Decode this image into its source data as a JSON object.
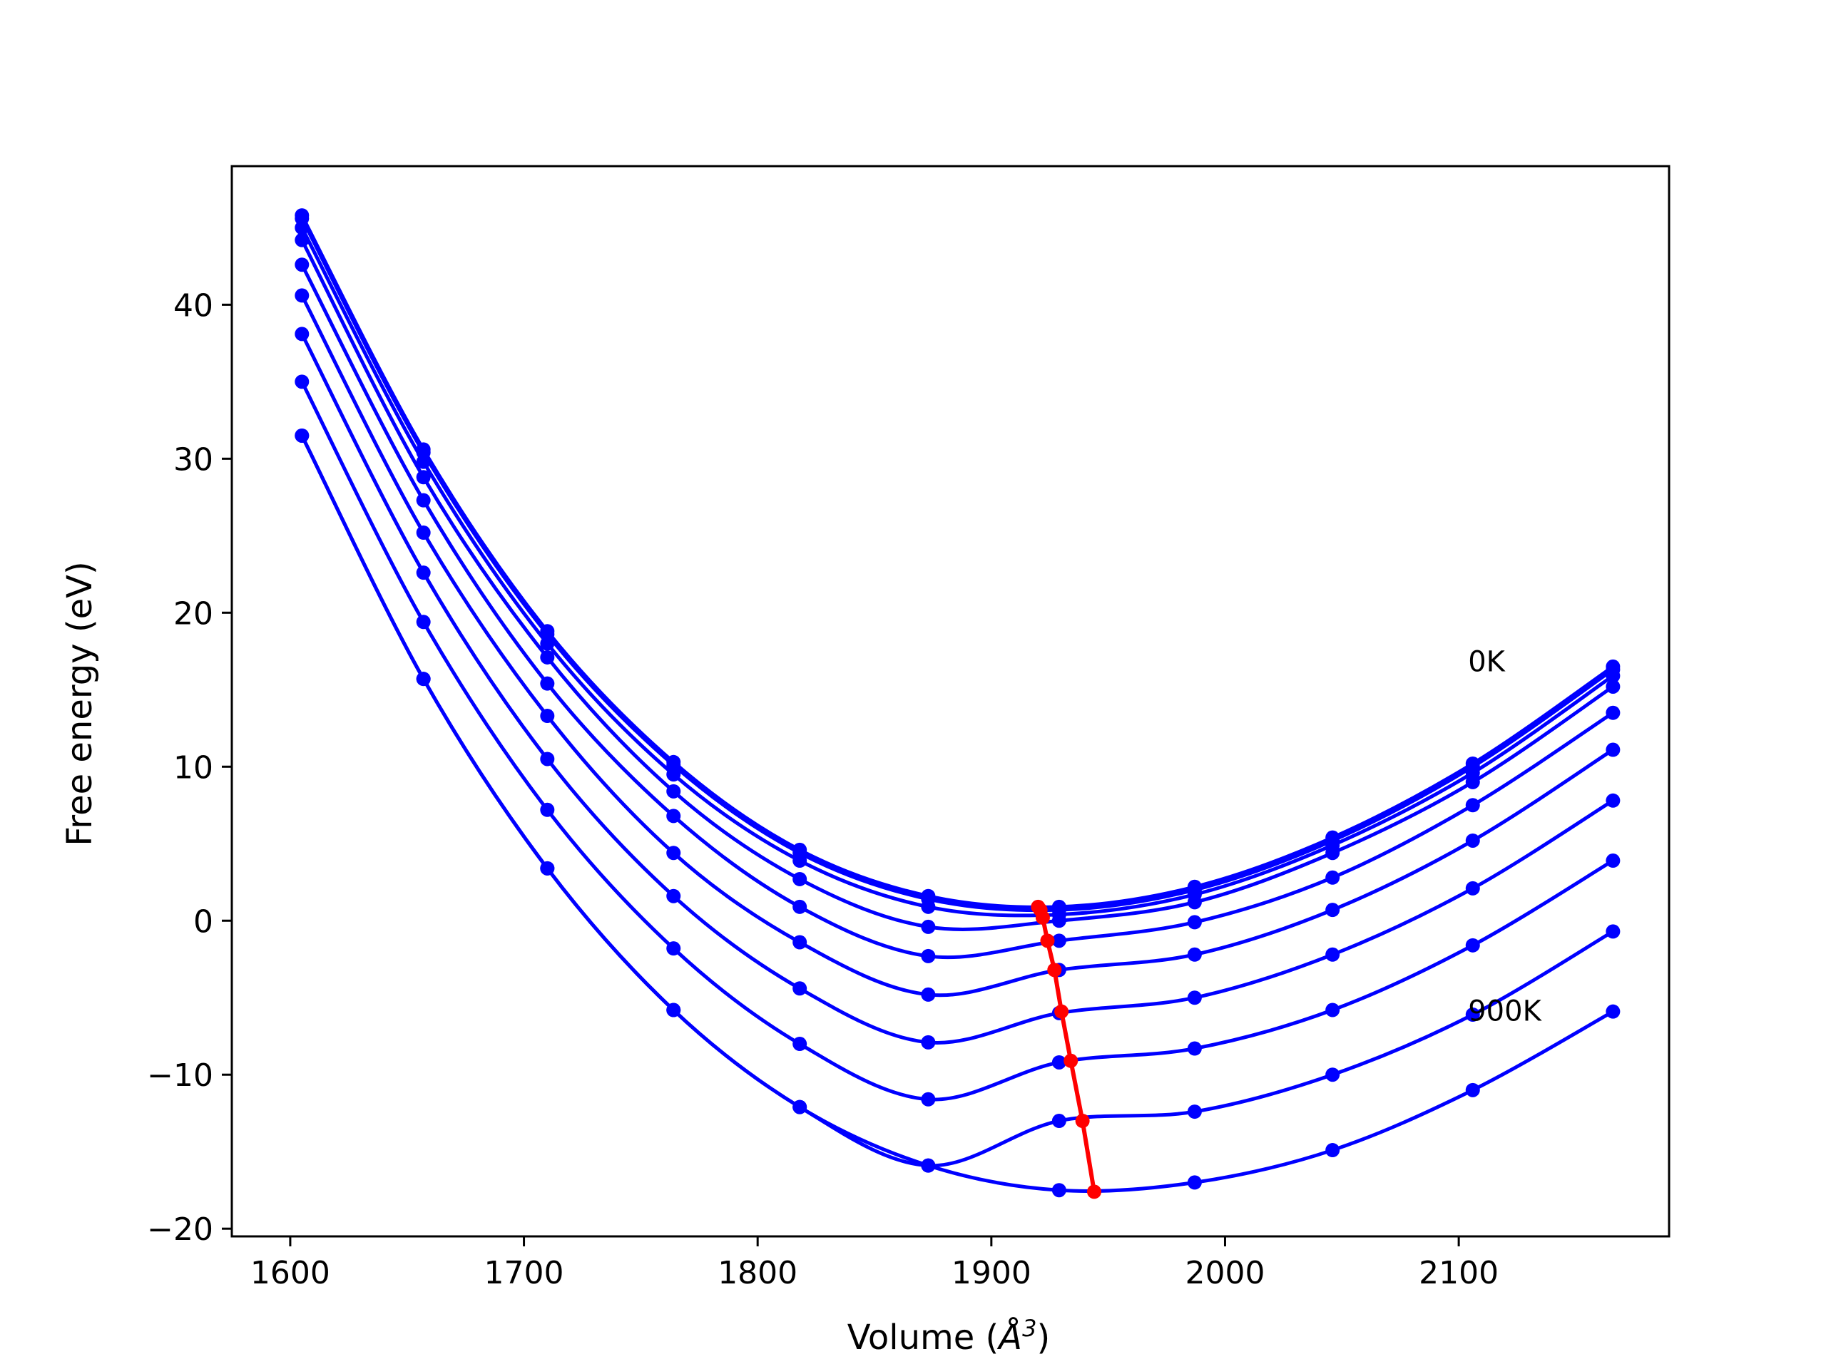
{
  "chart_data": {
    "type": "line",
    "xlabel": "Volume (",
    "xlabel_unit": "Å",
    "xlabel_exp": "3",
    "xlabel_close": ")",
    "ylabel": "Free energy (eV)",
    "xlim": [
      1575,
      2190
    ],
    "ylim": [
      -20.5,
      49
    ],
    "xticks": [
      1600,
      1700,
      1800,
      1900,
      2000,
      2100
    ],
    "yticks": [
      -20,
      -10,
      0,
      10,
      20,
      30,
      40
    ],
    "grid": false,
    "annotations": [
      {
        "text": "0K",
        "x": 2104,
        "y": 16.2
      },
      {
        "text": "900K",
        "x": 2104,
        "y": -6.5
      }
    ],
    "x": [
      1605,
      1657,
      1710,
      1764,
      1818,
      1873,
      1929,
      1987,
      2046,
      2106,
      2166
    ],
    "series": [
      {
        "color": "#0000ff",
        "values": [
          45.8,
          30.6,
          18.8,
          10.3,
          4.6,
          1.6,
          0.9,
          2.2,
          5.4,
          10.2,
          16.5
        ]
      },
      {
        "color": "#0000ff",
        "values": [
          45.6,
          30.4,
          18.6,
          10.1,
          4.4,
          1.4,
          0.7,
          2.0,
          5.2,
          10.0,
          16.3
        ]
      },
      {
        "color": "#0000ff",
        "values": [
          45.0,
          29.8,
          18.0,
          9.5,
          3.9,
          0.9,
          0.4,
          1.7,
          4.9,
          9.6,
          15.9
        ]
      },
      {
        "color": "#0000ff",
        "values": [
          44.2,
          28.8,
          17.1,
          8.4,
          2.7,
          -0.4,
          0.0,
          1.2,
          4.4,
          9.0,
          15.2
        ]
      },
      {
        "color": "#0000ff",
        "values": [
          42.6,
          27.3,
          15.4,
          6.8,
          0.9,
          -2.3,
          -1.3,
          -0.1,
          2.8,
          7.5,
          13.5
        ]
      },
      {
        "color": "#0000ff",
        "values": [
          40.6,
          25.2,
          13.3,
          4.4,
          -1.4,
          -4.8,
          -3.2,
          -2.2,
          0.7,
          5.2,
          11.1
        ]
      },
      {
        "color": "#0000ff",
        "values": [
          38.1,
          22.6,
          10.5,
          1.6,
          -4.4,
          -7.9,
          -6.0,
          -5.0,
          -2.2,
          2.1,
          7.8
        ]
      },
      {
        "color": "#0000ff",
        "values": [
          35.0,
          19.4,
          7.2,
          -1.8,
          -8.0,
          -11.6,
          -9.2,
          -8.3,
          -5.8,
          -1.6,
          3.9
        ]
      },
      {
        "color": "#0000ff",
        "values": [
          31.5,
          15.7,
          3.4,
          -5.8,
          -12.1,
          -15.9,
          -13.0,
          -12.4,
          -10.0,
          -6.1,
          -0.7
        ]
      },
      {
        "color": "#0000ff",
        "values": [
          31.5,
          15.7,
          3.4,
          -5.8,
          -12.1,
          -15.9,
          -17.5,
          -17.0,
          -14.9,
          -11.0,
          -5.9
        ]
      }
    ],
    "minima_line": {
      "color": "#ff0000",
      "points": [
        [
          1920,
          0.9
        ],
        [
          1921,
          0.7
        ],
        [
          1922,
          0.2
        ],
        [
          1924,
          -1.3
        ],
        [
          1927,
          -3.2
        ],
        [
          1930,
          -5.9
        ],
        [
          1934,
          -9.1
        ],
        [
          1939,
          -13.0
        ],
        [
          1944,
          -17.6
        ]
      ]
    }
  }
}
